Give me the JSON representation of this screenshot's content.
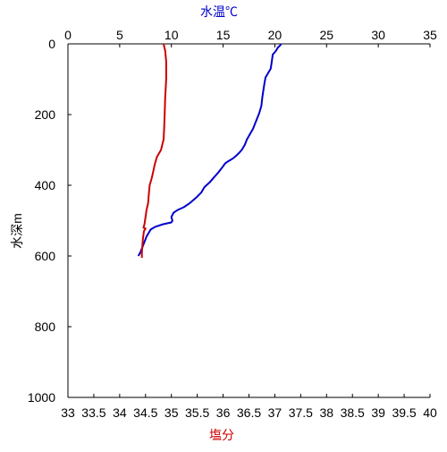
{
  "chart_data": {
    "type": "line",
    "top_axis_label": "水温℃",
    "bottom_axis_label": "塩分",
    "ylabel": "水深m",
    "top_axis_range": [
      0,
      35
    ],
    "top_axis_ticks": [
      "0",
      "5",
      "10",
      "15",
      "20",
      "25",
      "30",
      "35"
    ],
    "bottom_axis_range": [
      33,
      40
    ],
    "bottom_axis_ticks": [
      "33",
      "33.5",
      "34",
      "34.5",
      "35",
      "35.5",
      "36",
      "36.5",
      "37",
      "37.5",
      "38",
      "38.5",
      "39",
      "39.5",
      "40"
    ],
    "ylim": [
      0,
      1000
    ],
    "y_ticks": [
      "0",
      "200",
      "400",
      "600",
      "800",
      "1000"
    ],
    "y_inverted": true,
    "grid": false,
    "colors": {
      "temperature": "#0000cc",
      "salinity": "#cc0000",
      "top_axis_label": "#0000cc",
      "bottom_axis_label": "#cc0000",
      "axis": "#000000"
    },
    "series": [
      {
        "key": "temperature",
        "axis": "top",
        "color": "#0000cc",
        "points": [
          [
            20.6,
            0
          ],
          [
            20.5,
            5
          ],
          [
            20.3,
            10
          ],
          [
            20.1,
            20
          ],
          [
            19.8,
            30
          ],
          [
            19.7,
            50
          ],
          [
            19.6,
            70
          ],
          [
            19.3,
            85
          ],
          [
            19.1,
            95
          ],
          [
            19.0,
            110
          ],
          [
            18.9,
            130
          ],
          [
            18.8,
            150
          ],
          [
            18.7,
            175
          ],
          [
            18.5,
            195
          ],
          [
            18.3,
            210
          ],
          [
            18.1,
            225
          ],
          [
            17.9,
            240
          ],
          [
            17.7,
            250
          ],
          [
            17.5,
            260
          ],
          [
            17.3,
            270
          ],
          [
            17.1,
            285
          ],
          [
            16.8,
            300
          ],
          [
            16.5,
            310
          ],
          [
            16.2,
            318
          ],
          [
            15.9,
            325
          ],
          [
            15.5,
            332
          ],
          [
            15.2,
            338
          ],
          [
            14.9,
            350
          ],
          [
            14.5,
            365
          ],
          [
            14.1,
            378
          ],
          [
            13.7,
            392
          ],
          [
            13.2,
            405
          ],
          [
            12.9,
            420
          ],
          [
            12.4,
            435
          ],
          [
            11.8,
            450
          ],
          [
            11.2,
            462
          ],
          [
            10.6,
            470
          ],
          [
            10.2,
            478
          ],
          [
            10.0,
            490
          ],
          [
            10.1,
            500
          ],
          [
            10.0,
            505
          ],
          [
            9.2,
            510
          ],
          [
            8.4,
            518
          ],
          [
            8.0,
            525
          ],
          [
            7.8,
            535
          ],
          [
            7.6,
            545
          ],
          [
            7.4,
            560
          ],
          [
            7.2,
            575
          ],
          [
            7.0,
            590
          ],
          [
            6.8,
            600
          ]
        ]
      },
      {
        "key": "salinity",
        "axis": "bottom",
        "color": "#cc0000",
        "points": [
          [
            34.85,
            0
          ],
          [
            34.88,
            20
          ],
          [
            34.9,
            50
          ],
          [
            34.9,
            100
          ],
          [
            34.88,
            150
          ],
          [
            34.87,
            200
          ],
          [
            34.86,
            240
          ],
          [
            34.85,
            270
          ],
          [
            34.8,
            300
          ],
          [
            34.72,
            320
          ],
          [
            34.68,
            340
          ],
          [
            34.65,
            360
          ],
          [
            34.62,
            380
          ],
          [
            34.58,
            400
          ],
          [
            34.56,
            430
          ],
          [
            34.55,
            450
          ],
          [
            34.52,
            470
          ],
          [
            34.5,
            490
          ],
          [
            34.48,
            510
          ],
          [
            34.46,
            520
          ],
          [
            34.5,
            522
          ],
          [
            34.47,
            530
          ],
          [
            34.45,
            550
          ],
          [
            34.44,
            570
          ],
          [
            34.43,
            590
          ],
          [
            34.43,
            605
          ]
        ]
      }
    ]
  }
}
